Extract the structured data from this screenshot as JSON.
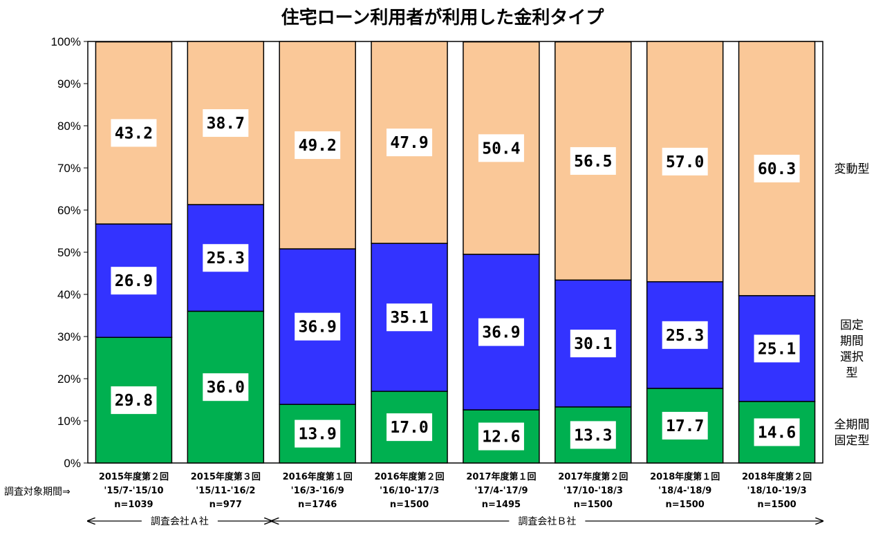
{
  "chart_data": {
    "type": "bar",
    "stacked": true,
    "title": "住宅ローン利用者が利用した金利タイプ",
    "ylim": [
      0,
      100
    ],
    "y_ticks": [
      "0%",
      "10%",
      "20%",
      "30%",
      "40%",
      "50%",
      "60%",
      "70%",
      "80%",
      "90%",
      "100%"
    ],
    "categories": [
      {
        "line1": "2015年度第２回",
        "line2": "'15/7-'15/10",
        "line3": "n=1039"
      },
      {
        "line1": "2015年度第３回",
        "line2": "'15/11-'16/2",
        "line3": "n=977"
      },
      {
        "line1": "2016年度第１回",
        "line2": "'16/3-'16/9",
        "line3": "n=1746"
      },
      {
        "line1": "2016年度第２回",
        "line2": "'16/10-'17/3",
        "line3": "n=1500"
      },
      {
        "line1": "2017年度第１回",
        "line2": "'17/4-'17/9",
        "line3": "n=1495"
      },
      {
        "line1": "2017年度第２回",
        "line2": "'17/10-'18/3",
        "line3": "n=1500"
      },
      {
        "line1": "2018年度第１回",
        "line2": "'18/4-'18/9",
        "line3": "n=1500"
      },
      {
        "line1": "2018年度第２回",
        "line2": "'18/10-'19/3",
        "line3": "n=1500"
      }
    ],
    "series": [
      {
        "name": "全期間固定型",
        "legend_lines": [
          "全期間",
          "固定型"
        ],
        "color": "#00b050",
        "values": [
          29.8,
          36.0,
          13.9,
          17.0,
          12.6,
          13.3,
          17.7,
          14.6
        ]
      },
      {
        "name": "固定期間選択型",
        "legend_lines": [
          "固定",
          "期間",
          "選択",
          "型"
        ],
        "color": "#3333ff",
        "values": [
          26.9,
          25.3,
          36.9,
          35.1,
          36.9,
          30.1,
          25.3,
          25.1
        ]
      },
      {
        "name": "変動型",
        "legend_lines": [
          "変動型"
        ],
        "color": "#fac898",
        "values": [
          43.2,
          38.7,
          49.2,
          47.9,
          50.4,
          56.5,
          57.0,
          60.3
        ]
      }
    ],
    "period_label": "調査対象期間⇒",
    "groups": [
      {
        "label": "調査会社Ａ社",
        "from": 0,
        "to": 1
      },
      {
        "label": "調査会社Ｂ社",
        "from": 2,
        "to": 7
      }
    ]
  }
}
